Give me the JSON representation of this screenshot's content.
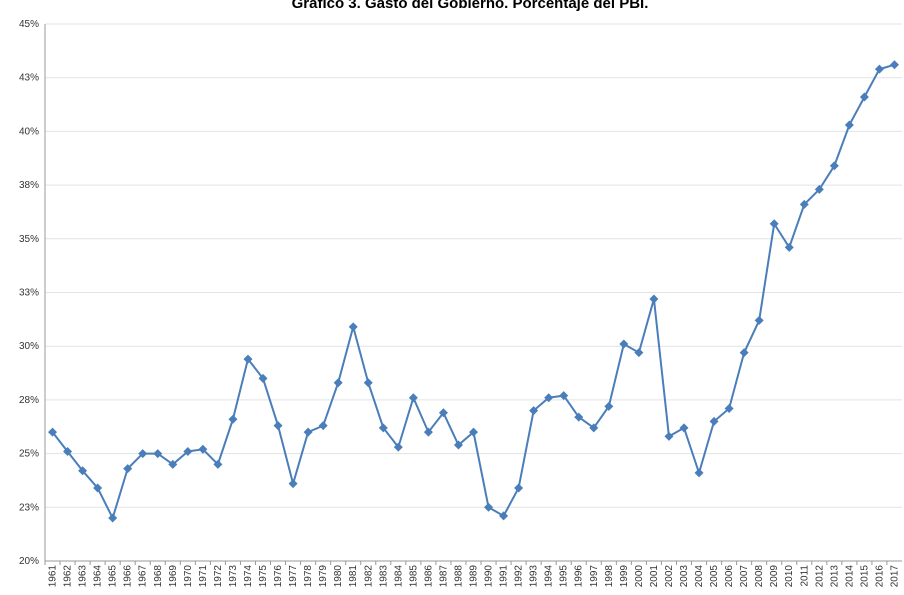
{
  "chart_data": {
    "type": "line",
    "title": "Gráfico 3. Gasto del Gobierno. Porcentaje del PBI.",
    "categories": [
      "1961",
      "1962",
      "1963",
      "1964",
      "1965",
      "1966",
      "1967",
      "1968",
      "1969",
      "1970",
      "1971",
      "1972",
      "1973",
      "1974",
      "1975",
      "1976",
      "1977",
      "1978",
      "1979",
      "1980",
      "1981",
      "1982",
      "1983",
      "1984",
      "1985",
      "1986",
      "1987",
      "1988",
      "1989",
      "1990",
      "1991",
      "1992",
      "1993",
      "1994",
      "1995",
      "1996",
      "1997",
      "1998",
      "1999",
      "2000",
      "2001",
      "2002",
      "2003",
      "2004",
      "2005",
      "2006",
      "2007",
      "2008",
      "2009",
      "2010",
      "2011",
      "2012",
      "2013",
      "2014",
      "2015",
      "2016",
      "2017"
    ],
    "series": [
      {
        "color": "#4a7ebb",
        "values": [
          26.0,
          25.1,
          24.2,
          23.4,
          22.0,
          24.3,
          25.0,
          25.0,
          24.5,
          25.1,
          25.2,
          24.5,
          26.6,
          29.4,
          28.5,
          26.3,
          23.6,
          26.0,
          26.3,
          28.3,
          30.9,
          28.3,
          26.2,
          25.3,
          27.6,
          26.0,
          26.9,
          25.4,
          26.0,
          22.5,
          22.1,
          23.4,
          27.0,
          27.6,
          27.7,
          26.7,
          26.2,
          27.2,
          30.1,
          29.7,
          32.2,
          25.8,
          26.2,
          24.1,
          26.5,
          27.1,
          29.7,
          31.2,
          35.7,
          34.6,
          36.6,
          37.3,
          38.4,
          40.3,
          41.6,
          42.9,
          43.1
        ]
      }
    ],
    "ylim": [
      20,
      45
    ],
    "yticks": [
      {
        "value": 20,
        "label": "20%"
      },
      {
        "value": 22.5,
        "label": "23%"
      },
      {
        "value": 25,
        "label": "25%"
      },
      {
        "value": 27.5,
        "label": "28%"
      },
      {
        "value": 30,
        "label": "30%"
      },
      {
        "value": 32.5,
        "label": "33%"
      },
      {
        "value": 35,
        "label": "35%"
      },
      {
        "value": 37.5,
        "label": "38%"
      },
      {
        "value": 40,
        "label": "40%"
      },
      {
        "value": 42.5,
        "label": "43%"
      },
      {
        "value": 45,
        "label": "45%"
      }
    ],
    "grid": true
  }
}
